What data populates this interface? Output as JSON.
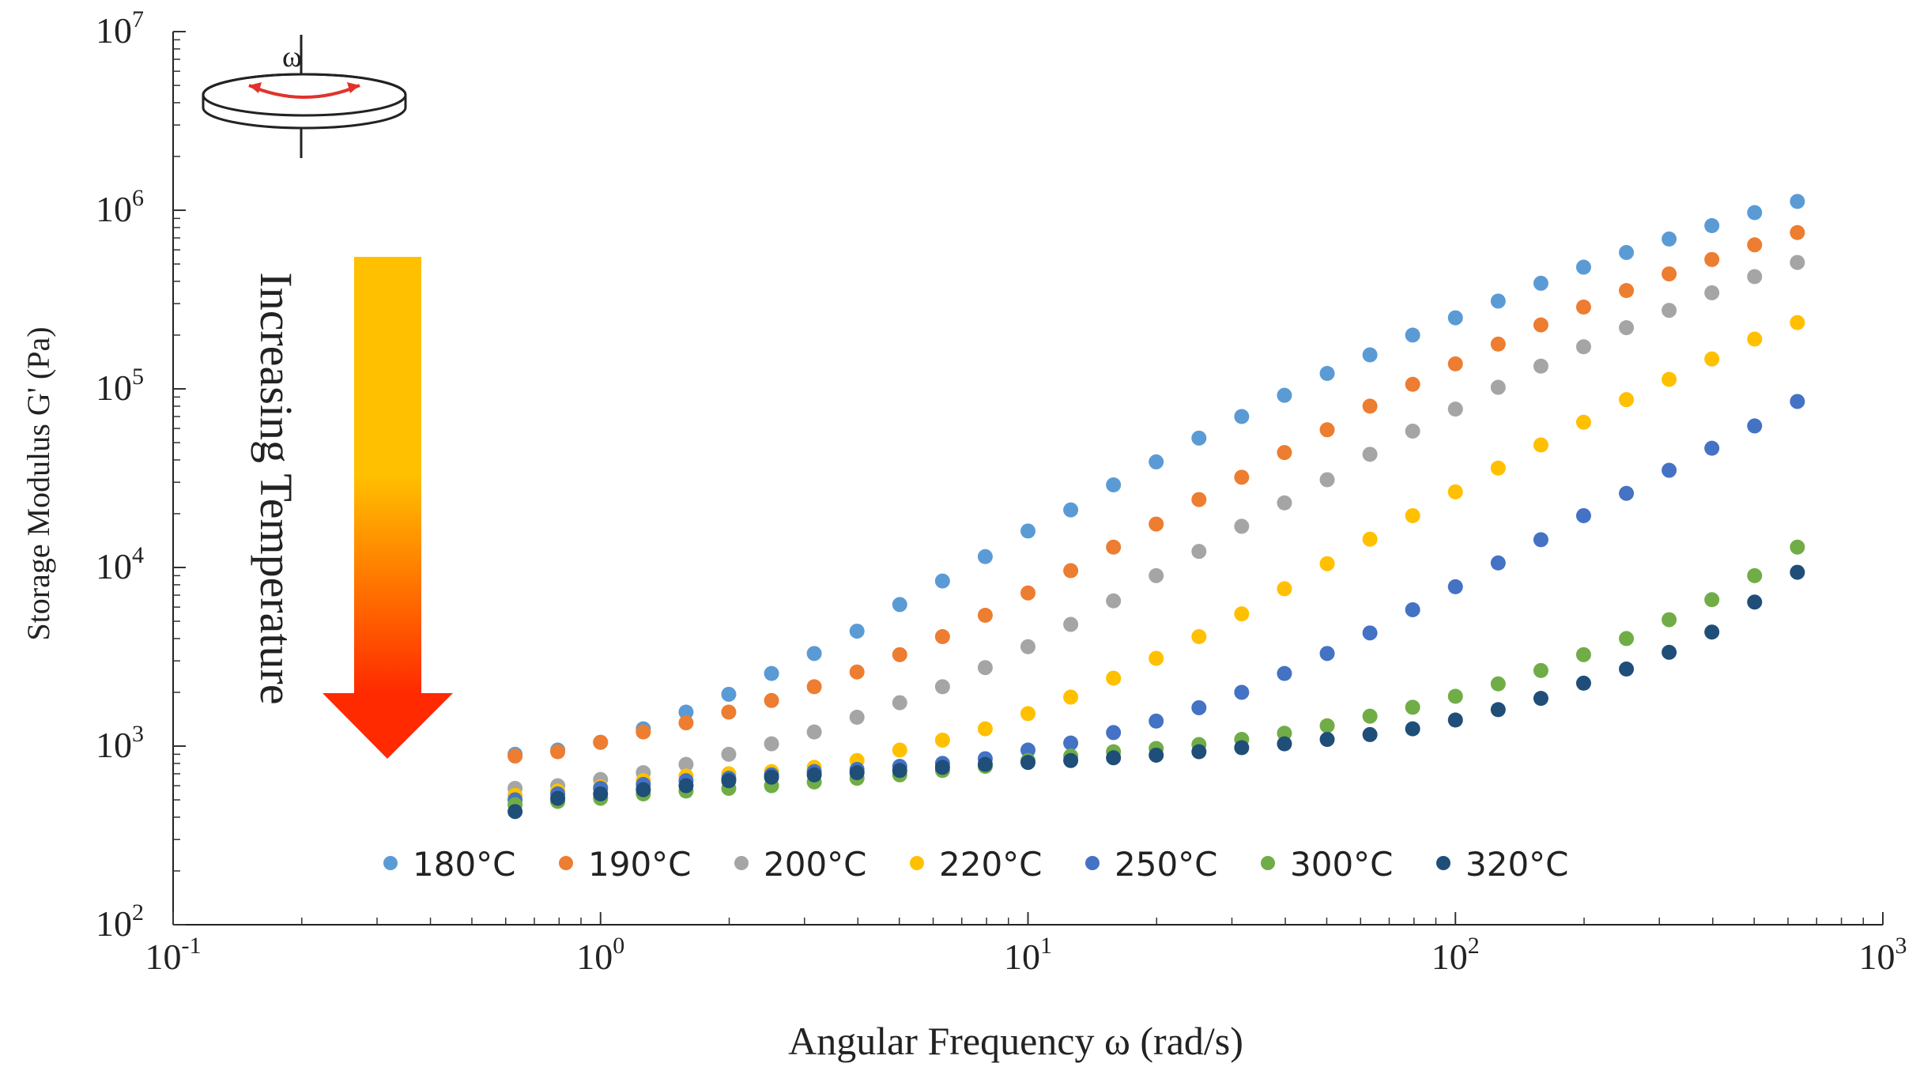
{
  "chart_data": {
    "type": "scatter",
    "xlabel": "Angular Frequency ω (rad/s)",
    "ylabel": "Storage Modulus G' (Pa)",
    "x_scale": "log",
    "y_scale": "log",
    "xlim": [
      0.1,
      1000
    ],
    "ylim": [
      100,
      10000000
    ],
    "grid": false,
    "legend_position": "bottom-inside",
    "annotation": "Increasing Temperature",
    "annotation_symbol": "ω",
    "x_ticks": [
      {
        "base": "10",
        "exp": "-1"
      },
      {
        "base": "10",
        "exp": "0"
      },
      {
        "base": "10",
        "exp": "1"
      },
      {
        "base": "10",
        "exp": "2"
      },
      {
        "base": "10",
        "exp": "3"
      }
    ],
    "y_ticks": [
      {
        "base": "10",
        "exp": "2"
      },
      {
        "base": "10",
        "exp": "3"
      },
      {
        "base": "10",
        "exp": "4"
      },
      {
        "base": "10",
        "exp": "5"
      },
      {
        "base": "10",
        "exp": "6"
      },
      {
        "base": "10",
        "exp": "7"
      }
    ],
    "x": [
      0.631,
      0.794,
      1.0,
      1.259,
      1.585,
      1.995,
      2.512,
      3.162,
      3.981,
      5.012,
      6.31,
      7.943,
      10.0,
      12.59,
      15.85,
      19.95,
      25.12,
      31.62,
      39.81,
      50.12,
      63.1,
      79.43,
      100.0,
      125.9,
      158.5,
      199.5,
      251.2,
      316.2,
      398.1,
      501.2,
      631.0
    ],
    "series": [
      {
        "name": "180°C",
        "color": "#5b9bd5",
        "values": [
          900,
          950,
          1050,
          1250,
          1550,
          1950,
          2550,
          3300,
          4400,
          6200,
          8400,
          11500,
          16000,
          21000,
          29000,
          39000,
          53000,
          70000,
          92000,
          122000,
          155000,
          200000,
          250000,
          310000,
          390000,
          480000,
          580000,
          690000,
          820000,
          970000,
          1120000
        ]
      },
      {
        "name": "190°C",
        "color": "#ed7d31",
        "values": [
          880,
          930,
          1050,
          1200,
          1350,
          1550,
          1800,
          2150,
          2600,
          3250,
          4100,
          5400,
          7200,
          9600,
          13000,
          17500,
          24000,
          32000,
          44000,
          59000,
          80000,
          106000,
          138000,
          178000,
          228000,
          287000,
          355000,
          440000,
          530000,
          640000,
          750000
        ]
      },
      {
        "name": "200°C",
        "color": "#a5a5a5",
        "values": [
          580,
          600,
          650,
          710,
          790,
          900,
          1030,
          1200,
          1450,
          1750,
          2150,
          2750,
          3600,
          4800,
          6500,
          9000,
          12300,
          17000,
          23000,
          31000,
          43000,
          58000,
          77000,
          102000,
          134000,
          172000,
          220000,
          275000,
          345000,
          425000,
          510000
        ]
      },
      {
        "name": "220°C",
        "color": "#ffc000",
        "values": [
          530,
          560,
          590,
          640,
          680,
          700,
          720,
          760,
          830,
          950,
          1080,
          1250,
          1520,
          1880,
          2400,
          3100,
          4100,
          5500,
          7600,
          10500,
          14400,
          19500,
          26500,
          36000,
          48500,
          65000,
          87000,
          113000,
          147000,
          190000,
          235000
        ]
      },
      {
        "name": "250°C",
        "color": "#4472c4",
        "values": [
          500,
          540,
          580,
          610,
          640,
          660,
          690,
          720,
          740,
          770,
          800,
          850,
          950,
          1040,
          1190,
          1380,
          1640,
          2000,
          2550,
          3300,
          4300,
          5800,
          7800,
          10600,
          14300,
          19500,
          26000,
          35000,
          46500,
          62000,
          85000
        ]
      },
      {
        "name": "300°C",
        "color": "#70ad47",
        "values": [
          470,
          490,
          510,
          540,
          560,
          580,
          600,
          630,
          660,
          690,
          730,
          770,
          830,
          880,
          930,
          970,
          1020,
          1090,
          1180,
          1300,
          1470,
          1650,
          1900,
          2230,
          2650,
          3250,
          4000,
          5100,
          6600,
          9000,
          13000
        ]
      },
      {
        "name": "320°C",
        "color": "#1f4e79",
        "values": [
          430,
          510,
          540,
          570,
          600,
          640,
          670,
          690,
          710,
          730,
          760,
          790,
          810,
          830,
          860,
          890,
          930,
          980,
          1030,
          1090,
          1160,
          1250,
          1400,
          1600,
          1850,
          2250,
          2700,
          3350,
          4350,
          6400,
          9400
        ]
      }
    ]
  }
}
